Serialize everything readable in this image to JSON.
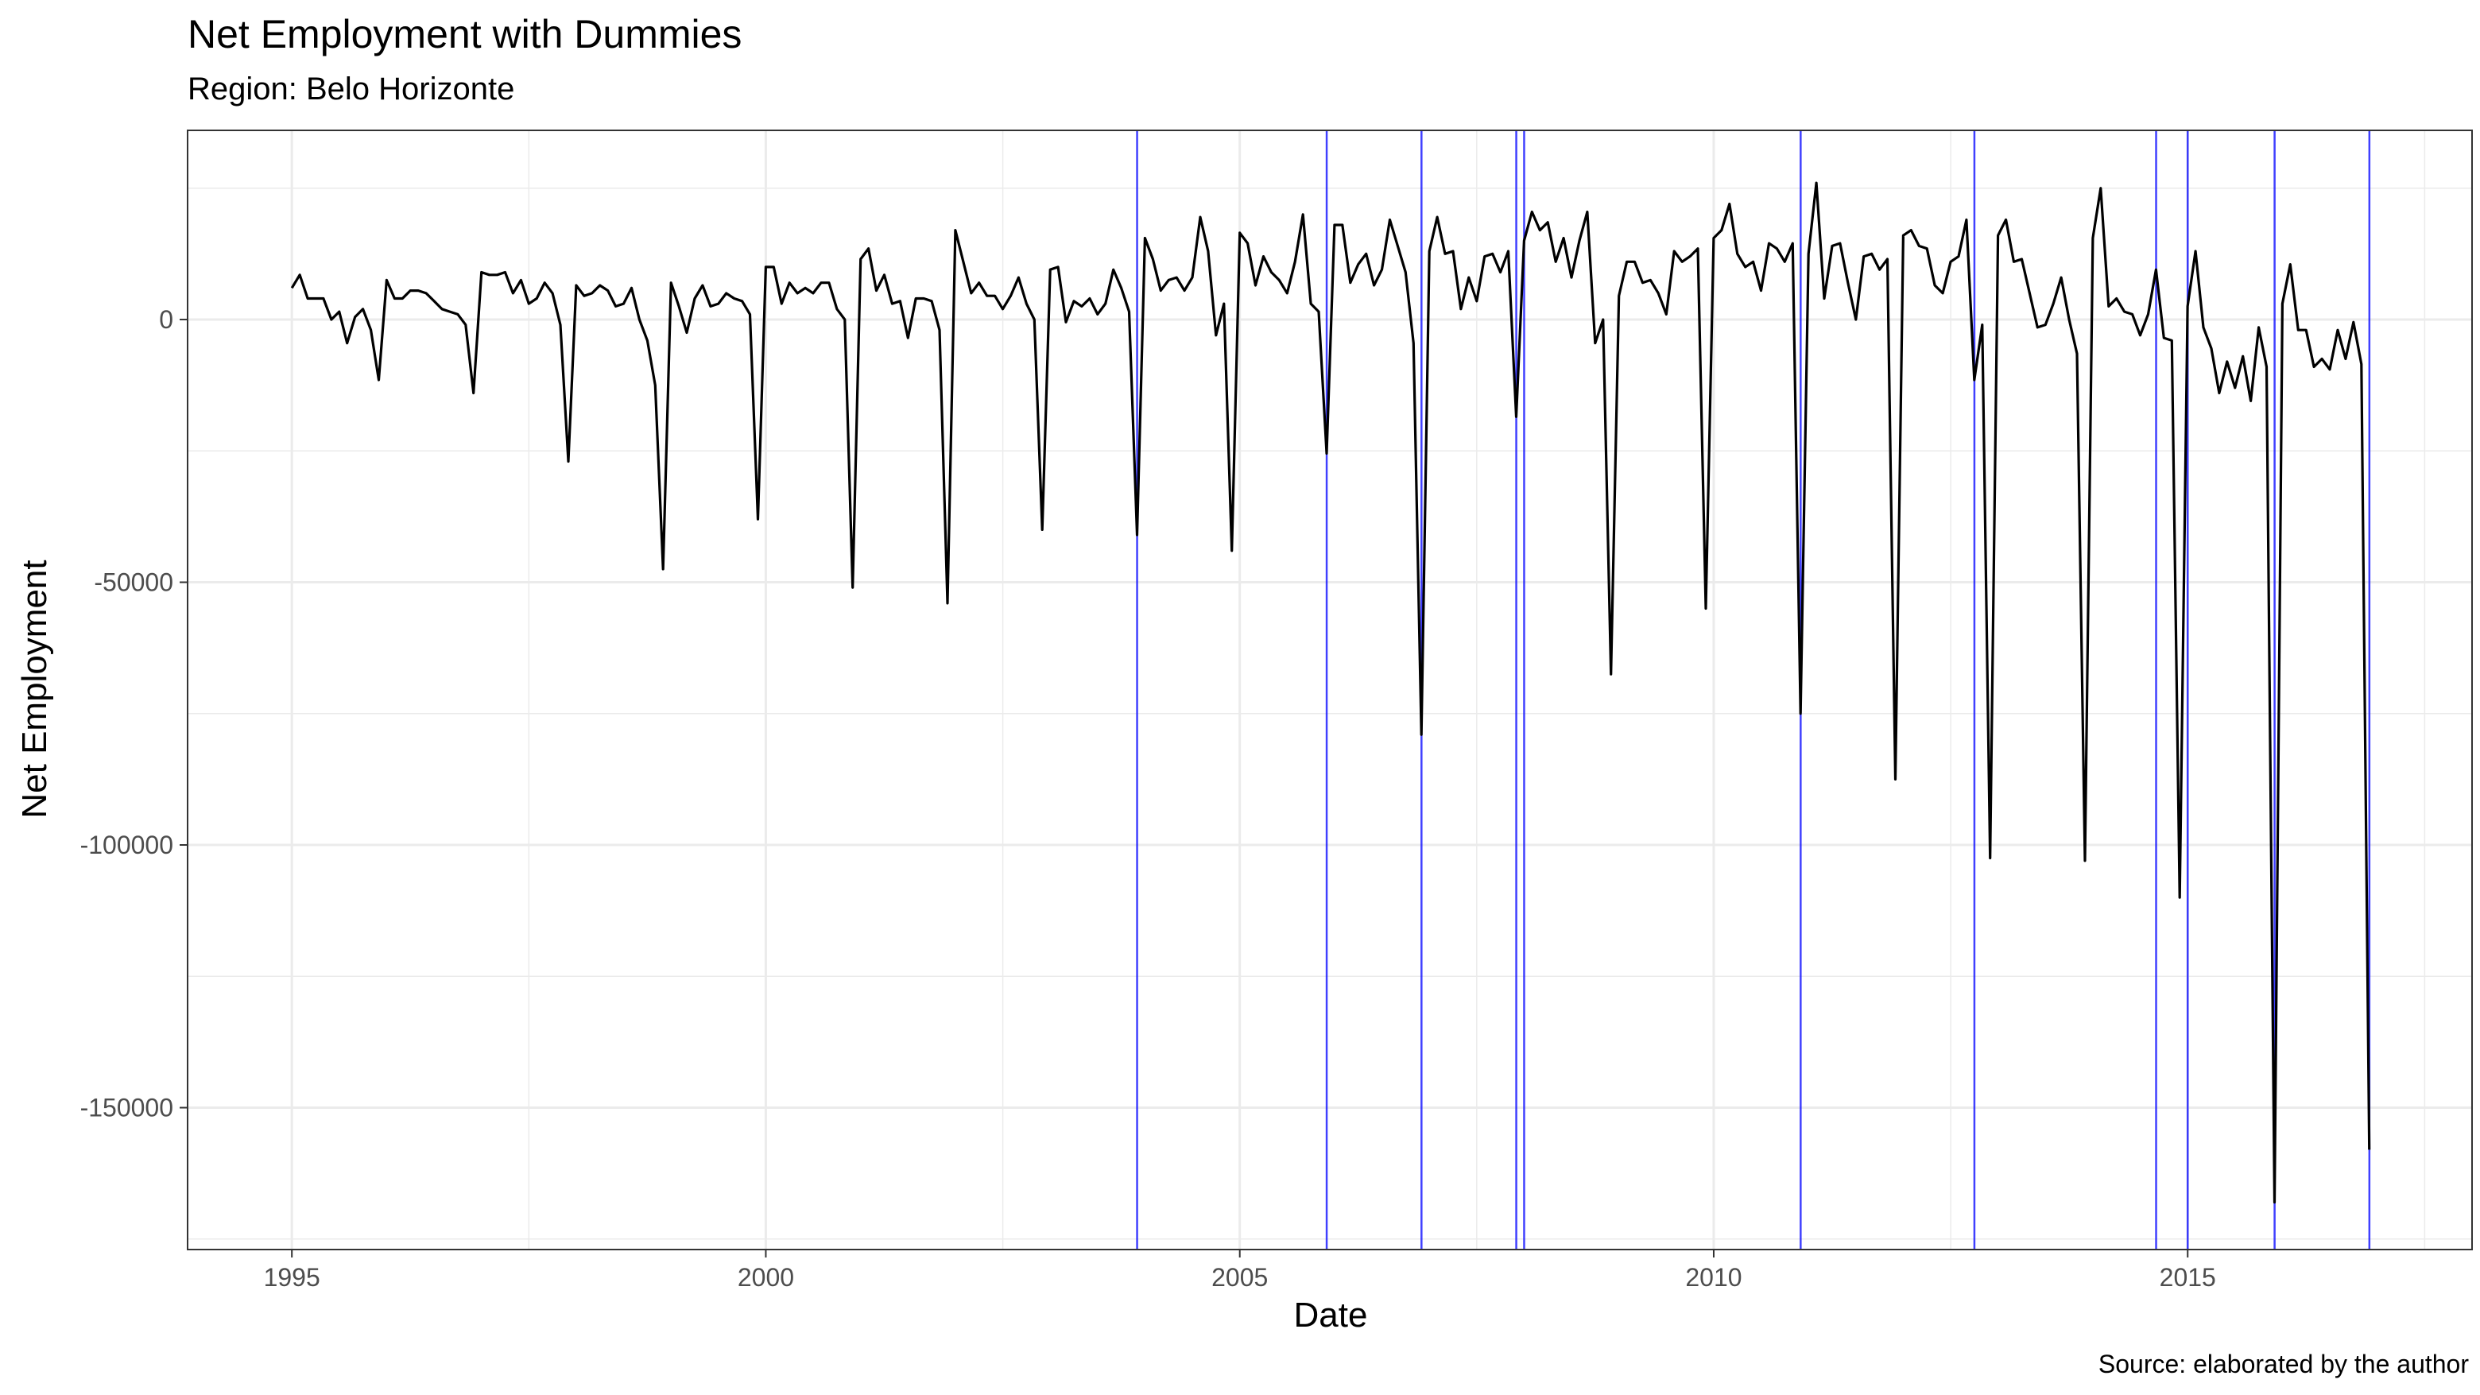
{
  "chart_data": {
    "type": "line",
    "title": "Net Employment with Dummies",
    "subtitle": "Region: Belo Horizonte",
    "caption": "Source: elaborated by the author",
    "xlabel": "Date",
    "ylabel": "Net Employment",
    "x_ticks": [
      "1995",
      "2000",
      "2005",
      "2010",
      "2015"
    ],
    "y_ticks": [
      "0",
      "-50000",
      "-100000",
      "-150000"
    ],
    "xlim": [
      1993.9,
      2018.0
    ],
    "ylim": [
      -177000,
      36000
    ],
    "grid": true,
    "series": [
      {
        "color": "#000000",
        "x_start": 1995.0,
        "step": 0.08333,
        "values": [
          6000,
          8500,
          4000,
          4000,
          4000,
          0,
          1500,
          -4500,
          500,
          2000,
          -2000,
          -11500,
          7500,
          4000,
          4000,
          5500,
          5500,
          5000,
          3500,
          2000,
          1500,
          1000,
          -1000,
          -14000,
          9000,
          8500,
          8500,
          9000,
          5000,
          7500,
          3000,
          4000,
          7000,
          5000,
          -1000,
          -27000,
          6500,
          4500,
          5000,
          6500,
          5500,
          2500,
          3000,
          6000,
          0,
          -4000,
          -12500,
          -47500,
          7000,
          2500,
          -2500,
          4000,
          6500,
          2500,
          3000,
          5000,
          4000,
          3500,
          1000,
          -38000,
          10000,
          10000,
          3000,
          7000,
          5000,
          6000,
          5000,
          7000,
          7000,
          2000,
          0,
          -51000,
          11500,
          13500,
          5500,
          8500,
          3000,
          3500,
          -3500,
          4000,
          4000,
          3500,
          -2000,
          -54000,
          17000,
          11000,
          5000,
          7000,
          4500,
          4500,
          2000,
          4500,
          8000,
          3000,
          0,
          -40000,
          9500,
          10000,
          -500,
          3500,
          2500,
          4000,
          1000,
          3000,
          9500,
          6000,
          1500,
          -41000,
          15500,
          11500,
          5500,
          7500,
          8000,
          5500,
          8000,
          19500,
          13000,
          -3000,
          3000,
          -44000,
          16500,
          14500,
          6500,
          12000,
          9000,
          7500,
          5000,
          11000,
          20000,
          3000,
          1500,
          -25500,
          18000,
          18000,
          7000,
          10500,
          12500,
          6500,
          9500,
          19000,
          14000,
          9000,
          -4500,
          -79000,
          13000,
          19500,
          12500,
          13000,
          2000,
          8000,
          3500,
          12000,
          12500,
          9000,
          13000,
          -18500,
          15000,
          20500,
          17000,
          18500,
          11000,
          15500,
          8000,
          15000,
          20500,
          -4500,
          0,
          -67500,
          4500,
          11000,
          11000,
          7000,
          7500,
          5000,
          1000,
          13000,
          11000,
          12000,
          13500,
          -55000,
          15500,
          17000,
          22000,
          12500,
          10000,
          11000,
          5500,
          14500,
          13500,
          11000,
          14500,
          -75000,
          12500,
          26000,
          4000,
          14000,
          14500,
          7000,
          0,
          12000,
          12500,
          9500,
          11500,
          -87500,
          16000,
          17000,
          14000,
          13500,
          6500,
          5000,
          11000,
          12000,
          19000,
          -11500,
          -1000,
          -102500,
          16000,
          19000,
          11000,
          11500,
          5000,
          -1500,
          -1000,
          3000,
          8000,
          0,
          -6500,
          -103000,
          15500,
          25000,
          2500,
          4000,
          1500,
          1000,
          -3000,
          1000,
          9500,
          -3500,
          -4000,
          -110000,
          2500,
          13000,
          -1500,
          -5500,
          -14000,
          -8000,
          -13000,
          -7000,
          -15500,
          -1500,
          -9000,
          -168000,
          3000,
          10500,
          -2000,
          -2000,
          -9000,
          -7500,
          -9500,
          -2000,
          -7500,
          -500,
          -8500,
          -158000
        ]
      }
    ],
    "dummy_lines": {
      "color": "#0000ff",
      "x": [
        2003.917,
        2005.917,
        2006.917,
        2007.917,
        2008.0,
        2010.917,
        2012.75,
        2014.667,
        2015.0,
        2015.917,
        2016.917
      ]
    }
  }
}
